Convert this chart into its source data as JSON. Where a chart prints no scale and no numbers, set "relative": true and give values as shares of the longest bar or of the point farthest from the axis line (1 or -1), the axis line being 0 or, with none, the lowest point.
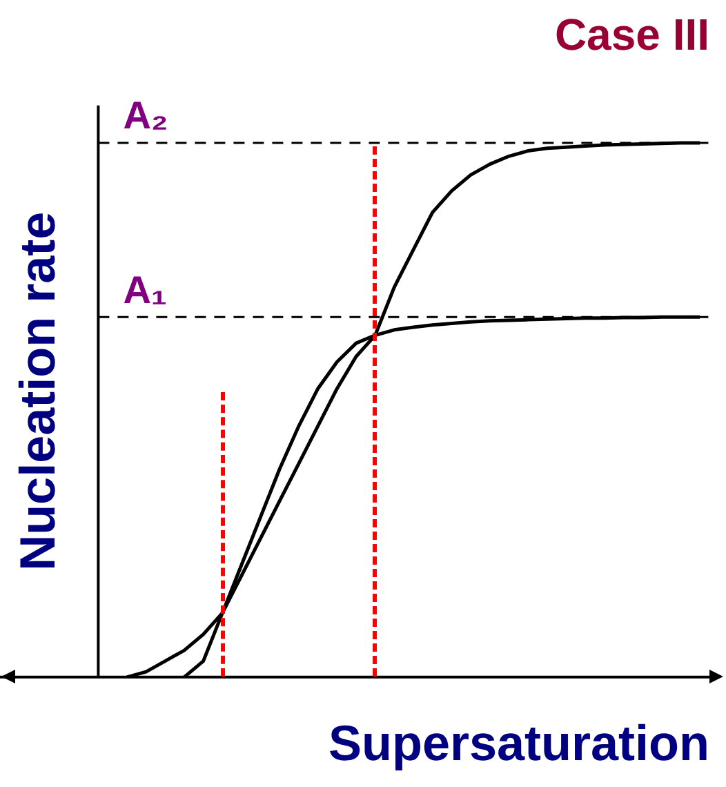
{
  "chart_data": {
    "type": "line",
    "relative": true,
    "title": "Case III",
    "xlabel": "Supersaturation",
    "ylabel": "Nucleation rate",
    "grid": false,
    "legend": false,
    "marker": "none",
    "line_style": "solid",
    "categories": [
      null,
      null,
      null,
      null,
      null,
      null,
      null,
      null,
      null,
      null,
      null,
      null,
      null,
      null,
      null,
      null,
      null,
      null,
      null,
      null,
      null,
      null,
      null,
      null,
      null,
      null,
      null,
      null,
      null,
      null,
      null,
      null
    ],
    "series": [
      {
        "color": "#000000",
        "values": [
          null,
          0,
          0.01,
          0.03,
          0.05,
          0.08,
          0.12,
          0.21,
          0.3,
          0.39,
          0.47,
          0.54,
          0.59,
          0.625,
          0.64,
          0.65,
          0.655,
          0.659,
          0.662,
          0.665,
          0.667,
          0.668,
          0.669,
          0.67,
          0.671,
          0.672,
          0.672,
          0.673,
          0.673,
          0.674,
          0.674,
          0.674
        ]
      },
      {
        "color": "#000000",
        "values": [
          null,
          null,
          null,
          null,
          0,
          0.03,
          0.12,
          0.19,
          0.26,
          0.33,
          0.4,
          0.47,
          0.54,
          0.6,
          0.64,
          0.73,
          0.8,
          0.87,
          0.91,
          0.94,
          0.96,
          0.975,
          0.985,
          0.99,
          0.992,
          0.994,
          0.996,
          0.997,
          0.998,
          0.999,
          1,
          1
        ]
      }
    ],
    "ref_lines": [
      {
        "axis": "y",
        "value": 0.674,
        "label": "A₁",
        "color": "#000000",
        "line_style": "dashed"
      },
      {
        "axis": "y",
        "value": 1,
        "label": "A₂",
        "color": "#000000",
        "line_style": "dashed"
      }
    ]
  }
}
